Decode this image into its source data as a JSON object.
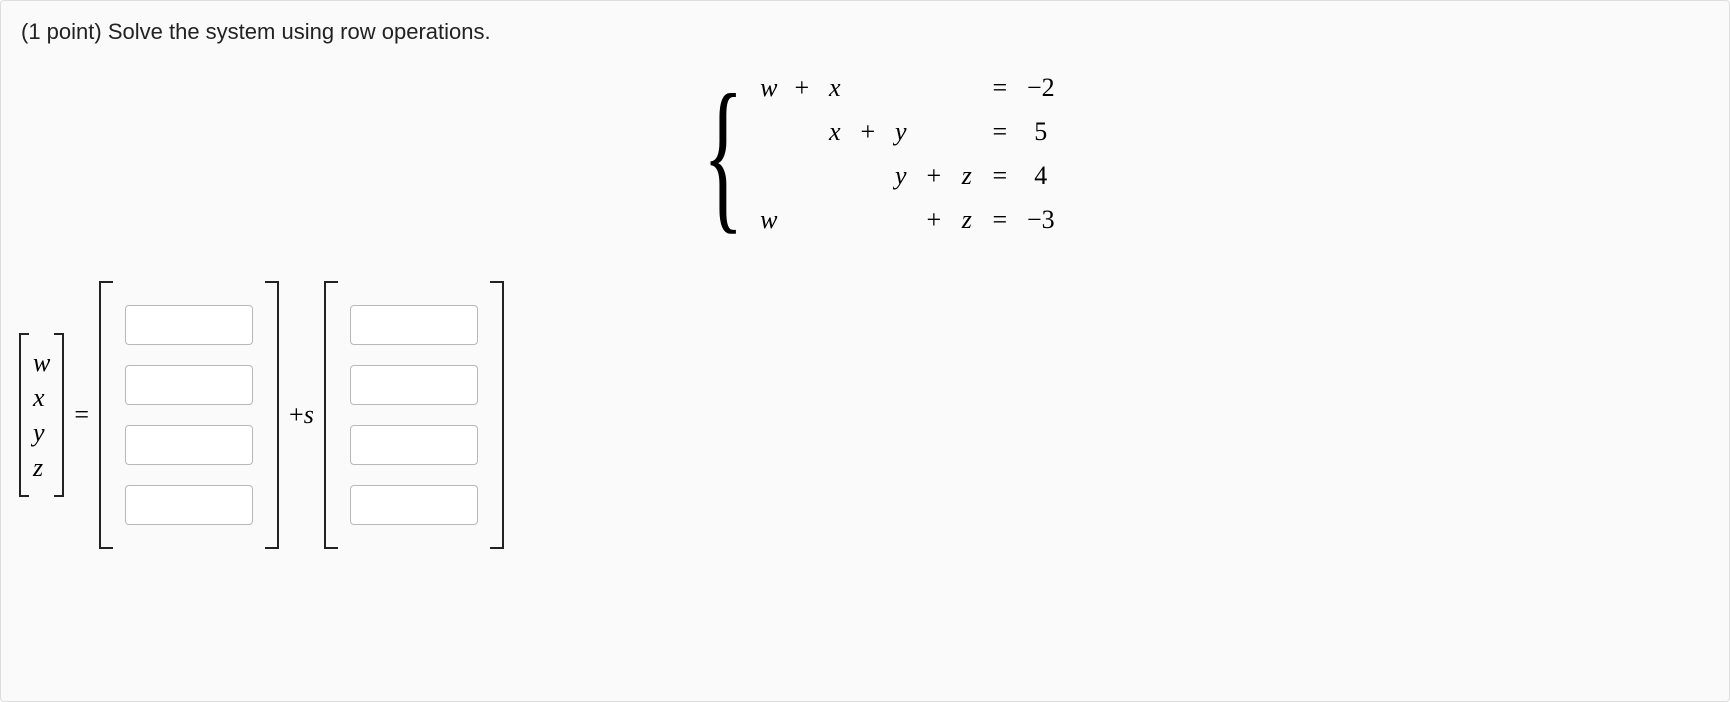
{
  "prompt": {
    "points_label": "(1 point)",
    "text": "Solve the system using row operations."
  },
  "system": {
    "variables": [
      "w",
      "x",
      "y",
      "z"
    ],
    "rows": [
      {
        "cells": [
          "w",
          "+",
          "x",
          "",
          "",
          "",
          "",
          "=",
          "−2"
        ]
      },
      {
        "cells": [
          "",
          "",
          "x",
          "+",
          "y",
          "",
          "",
          "=",
          "5"
        ]
      },
      {
        "cells": [
          "",
          "",
          "",
          "",
          "y",
          "+",
          "z",
          "=",
          "4"
        ]
      },
      {
        "cells": [
          "w",
          "",
          "",
          "",
          "",
          "+",
          "z",
          "=",
          "−3"
        ]
      }
    ]
  },
  "answer": {
    "variable_vector": [
      "w",
      "x",
      "y",
      "z"
    ],
    "equals": "=",
    "plus_param": "+s",
    "vector1": [
      "",
      "",
      "",
      ""
    ],
    "vector2": [
      "",
      "",
      "",
      ""
    ]
  },
  "style": {
    "background": "#fafafa",
    "border_color": "#dddddd",
    "text_color": "#222222",
    "input_border": "#b8b8b8",
    "input_bg": "#ffffff",
    "math_font": "Times New Roman",
    "body_font": "Arial",
    "prompt_fontsize": 22,
    "math_fontsize": 26
  }
}
